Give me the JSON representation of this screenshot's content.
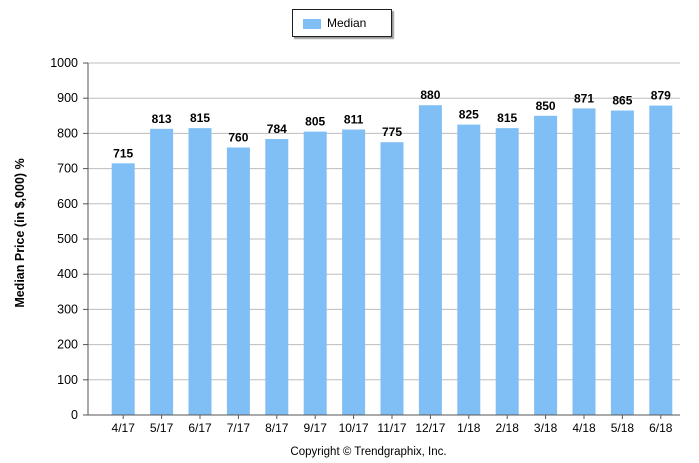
{
  "chart_data": {
    "type": "bar",
    "categories": [
      "4/17",
      "5/17",
      "6/17",
      "7/17",
      "8/17",
      "9/17",
      "10/17",
      "11/17",
      "12/17",
      "1/18",
      "2/18",
      "3/18",
      "4/18",
      "5/18",
      "6/18"
    ],
    "series": [
      {
        "name": "Median",
        "values": [
          715,
          813,
          815,
          760,
          784,
          805,
          811,
          775,
          880,
          825,
          815,
          850,
          871,
          865,
          879
        ]
      }
    ],
    "ylabel": "Median Price (in $,000) %",
    "ylim": [
      0,
      1000
    ],
    "yticks": [
      0,
      100,
      200,
      300,
      400,
      500,
      600,
      700,
      800,
      900,
      1000
    ],
    "grid": "horizontal",
    "legend_position": "top-center",
    "data_labels": true,
    "bar_color": "#7fbff5"
  },
  "legend": {
    "label": "Median"
  },
  "footer": {
    "copyright": "Copyright © Trendgraphix, Inc."
  }
}
